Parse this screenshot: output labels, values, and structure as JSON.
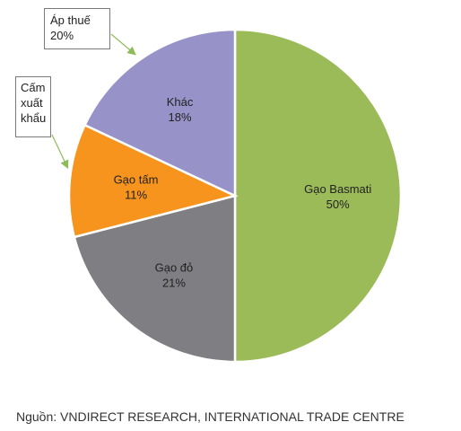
{
  "chart_data": {
    "type": "pie",
    "categories": [
      "Gạo Basmati",
      "Gạo đỏ",
      "Gạo tấm",
      "Khác"
    ],
    "values": [
      50,
      21,
      11,
      18
    ],
    "labels": [
      "50%",
      "21%",
      "11%",
      "18%"
    ],
    "colors": [
      "#9bbb59",
      "#7f7f83",
      "#f7941d",
      "#9793c9"
    ],
    "callouts": [
      {
        "lines": [
          "Áp thuế",
          "20%"
        ],
        "target": "Khác"
      },
      {
        "lines": [
          "Cấm",
          "xuất",
          "khẩu"
        ],
        "target": "Gạo tấm"
      }
    ]
  },
  "source": "Nguồn: VNDIRECT RESEARCH, INTERNATIONAL TRADE CENTRE"
}
